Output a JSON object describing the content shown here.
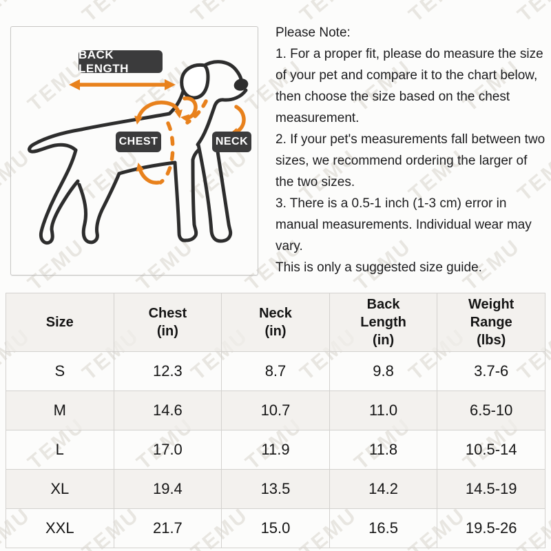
{
  "watermark": {
    "text": "TEMU"
  },
  "diagram": {
    "back_length_label": "BACK LENGTH",
    "chest_label": "CHEST",
    "neck_label": "NECK",
    "badge_bg": "#3b3b3c",
    "badge_text_color": "#ffffff",
    "arrow_color": "#e8811c",
    "outline_color": "#2d2d2d"
  },
  "note": {
    "title": "Please Note:",
    "items": [
      "1. For a proper fit, please do measure the size of your pet and compare it to the chart below, then choose the size based on the chest measurement.",
      "2. If your pet's measurements fall between two sizes, we recommend ordering the larger of the two sizes.",
      "3. There is a 0.5-1 inch (1-3 cm) error in manual measurements. Individual wear may vary.",
      "This is only a suggested size guide."
    ]
  },
  "size_table": {
    "headers": [
      "Size",
      "Chest\n(in)",
      "Neck\n(in)",
      "Back\nLength\n(in)",
      "Weight\nRange\n(lbs)"
    ],
    "rows": [
      [
        "S",
        "12.3",
        "8.7",
        "9.8",
        "3.7-6"
      ],
      [
        "M",
        "14.6",
        "10.7",
        "11.0",
        "6.5-10"
      ],
      [
        "L",
        "17.0",
        "11.9",
        "11.8",
        "10.5-14"
      ],
      [
        "XL",
        "19.4",
        "13.5",
        "14.2",
        "14.5-19"
      ],
      [
        "XXL",
        "21.7",
        "15.0",
        "16.5",
        "19.5-26"
      ]
    ]
  }
}
